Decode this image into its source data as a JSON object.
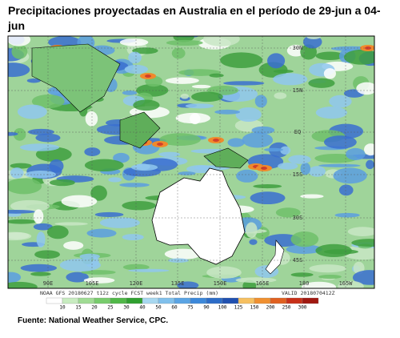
{
  "header": {
    "title": "Precipitaciones proyectadas en Australia en el período de 29-jun a 04-jun"
  },
  "map": {
    "lat_labels": [
      "30N",
      "15N",
      "EQ",
      "15S",
      "30S",
      "45S"
    ],
    "lon_labels": [
      "90E",
      "105E",
      "120E",
      "135E",
      "150E",
      "165E",
      "180",
      "165W"
    ],
    "footer": "NOAA GFS 20180627 t12z cycle FCST week1 Total Precip (mm)",
    "valid": "VALID 2018070412Z"
  },
  "colorbar": {
    "ticks": [
      10,
      15,
      20,
      25,
      30,
      40,
      50,
      60,
      75,
      90,
      100,
      125,
      150,
      200,
      250,
      300
    ]
  },
  "source": "Fuente: National Weather Service, CPC."
}
